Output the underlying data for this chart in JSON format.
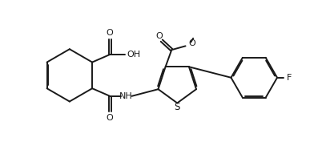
{
  "bg_color": "#ffffff",
  "line_color": "#1a1a1a",
  "line_width": 1.4,
  "figsize": [
    4.07,
    1.82
  ],
  "dpi": 100,
  "xlim": [
    0.0,
    4.07
  ],
  "ylim": [
    0.0,
    1.82
  ]
}
